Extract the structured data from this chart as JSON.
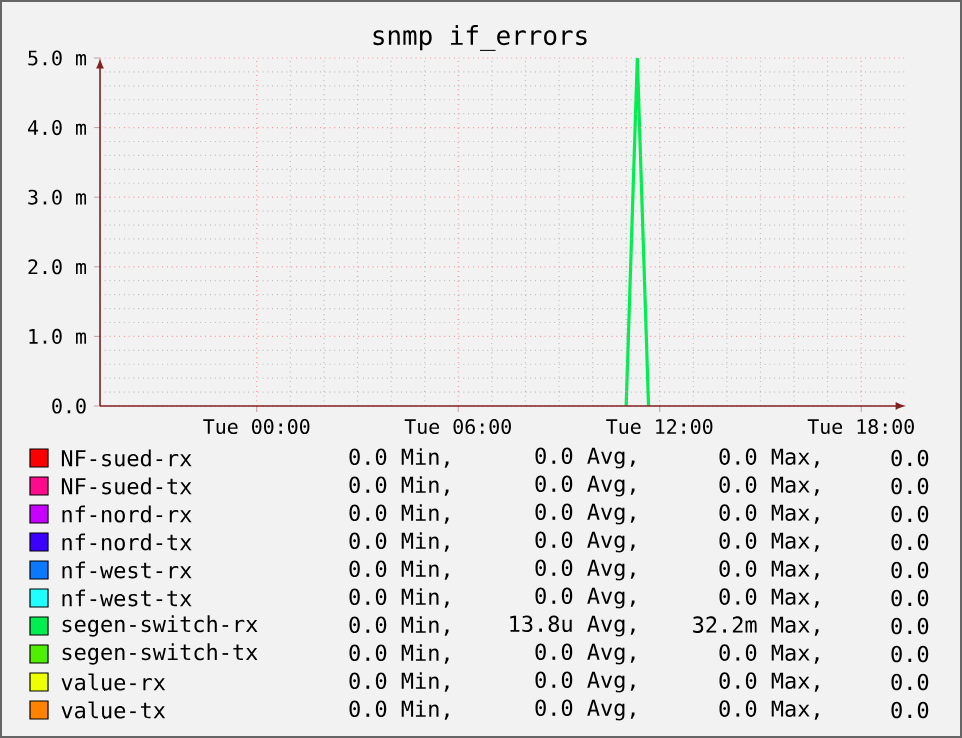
{
  "chart_data": {
    "type": "line",
    "title": "snmp if_errors",
    "categories": [
      null,
      null,
      null,
      null,
      null,
      null,
      null,
      null,
      null,
      null,
      null,
      null,
      null,
      null,
      "Tue 00:00",
      null,
      null,
      null,
      null,
      null,
      null,
      null,
      null,
      null,
      null,
      null,
      null,
      null,
      null,
      null,
      null,
      null,
      "Tue 06:00",
      null,
      null,
      null,
      null,
      null,
      null,
      null,
      null,
      null,
      null,
      null,
      null,
      null,
      null,
      null,
      null,
      null,
      "Tue 12:00",
      null,
      null,
      null,
      null,
      null,
      null,
      null,
      null,
      null,
      null,
      null,
      null,
      null,
      null,
      null,
      null,
      null,
      "Tue 18:00",
      null,
      null,
      null,
      null
    ],
    "ylim": [
      0,
      5
    ],
    "yticks": [
      {
        "value": 0,
        "label": "0.0"
      },
      {
        "value": 1,
        "label": "1.0 m"
      },
      {
        "value": 2,
        "label": "2.0 m"
      },
      {
        "value": 3,
        "label": "3.0 m"
      },
      {
        "value": 4,
        "label": "4.0 m"
      },
      {
        "value": 5,
        "label": "5.0 m"
      }
    ],
    "grid": true,
    "legend": "bottom",
    "series": [
      {
        "name": "NF-sued-rx",
        "color": "#ff0000",
        "values": [
          null,
          null,
          null,
          null,
          null,
          null,
          null,
          null,
          null,
          null,
          null,
          null,
          null,
          null,
          null,
          null,
          null,
          null,
          null,
          null,
          null,
          null,
          null,
          null,
          null,
          null,
          null,
          null,
          null,
          null,
          null,
          null,
          null,
          null,
          null,
          null,
          null,
          null,
          null,
          null,
          null,
          null,
          null,
          null,
          null,
          null,
          null,
          null,
          null,
          null,
          null,
          null,
          null,
          null,
          null,
          null,
          null,
          null,
          null,
          null,
          null,
          null,
          null,
          null,
          null,
          null,
          null,
          null,
          null,
          null,
          null,
          null,
          null
        ]
      },
      {
        "name": "NF-sued-tx",
        "color": "#ff0a8c",
        "values": [
          null,
          null,
          null,
          null,
          null,
          null,
          null,
          null,
          null,
          null,
          null,
          null,
          null,
          null,
          null,
          null,
          null,
          null,
          null,
          null,
          null,
          null,
          null,
          null,
          null,
          null,
          null,
          null,
          null,
          null,
          null,
          null,
          null,
          null,
          null,
          null,
          null,
          null,
          null,
          null,
          null,
          null,
          null,
          null,
          null,
          null,
          null,
          null,
          null,
          null,
          null,
          null,
          null,
          null,
          null,
          null,
          null,
          null,
          null,
          null,
          null,
          null,
          null,
          null,
          null,
          null,
          null,
          null,
          null,
          null,
          null,
          null,
          null
        ]
      },
      {
        "name": "nf-nord-rx",
        "color": "#c800ff",
        "values": [
          null,
          null,
          null,
          null,
          null,
          null,
          null,
          null,
          null,
          null,
          null,
          null,
          null,
          null,
          null,
          null,
          null,
          null,
          null,
          null,
          null,
          null,
          null,
          null,
          null,
          null,
          null,
          null,
          null,
          null,
          null,
          null,
          null,
          null,
          null,
          null,
          null,
          null,
          null,
          null,
          null,
          null,
          null,
          null,
          null,
          null,
          null,
          null,
          null,
          null,
          null,
          null,
          null,
          null,
          null,
          null,
          null,
          null,
          null,
          null,
          null,
          null,
          null,
          null,
          null,
          null,
          null,
          null,
          null,
          null,
          null,
          null,
          null
        ]
      },
      {
        "name": "nf-nord-tx",
        "color": "#3c00ff",
        "values": [
          null,
          null,
          null,
          null,
          null,
          null,
          null,
          null,
          null,
          null,
          null,
          null,
          null,
          null,
          null,
          null,
          null,
          null,
          null,
          null,
          null,
          null,
          null,
          null,
          null,
          null,
          null,
          null,
          null,
          null,
          null,
          null,
          null,
          null,
          null,
          null,
          null,
          null,
          null,
          null,
          null,
          null,
          null,
          null,
          null,
          null,
          null,
          null,
          null,
          null,
          null,
          null,
          null,
          null,
          null,
          null,
          null,
          null,
          null,
          null,
          null,
          null,
          null,
          null,
          null,
          null,
          null,
          null,
          null,
          null,
          null,
          null,
          null
        ]
      },
      {
        "name": "nf-west-rx",
        "color": "#0a78ff",
        "values": [
          null,
          null,
          null,
          null,
          null,
          null,
          null,
          null,
          null,
          null,
          null,
          null,
          null,
          null,
          null,
          null,
          null,
          null,
          null,
          null,
          null,
          null,
          null,
          null,
          null,
          null,
          null,
          null,
          null,
          null,
          null,
          null,
          null,
          null,
          null,
          null,
          null,
          null,
          null,
          null,
          null,
          null,
          null,
          null,
          null,
          null,
          null,
          null,
          null,
          null,
          null,
          null,
          null,
          null,
          null,
          null,
          null,
          null,
          null,
          null,
          null,
          null,
          null,
          null,
          null,
          null,
          null,
          null,
          null,
          null,
          null,
          null,
          null
        ]
      },
      {
        "name": "nf-west-tx",
        "color": "#1effff",
        "values": [
          null,
          null,
          null,
          null,
          null,
          null,
          null,
          null,
          null,
          null,
          null,
          null,
          null,
          null,
          null,
          null,
          null,
          null,
          null,
          null,
          null,
          null,
          null,
          null,
          null,
          null,
          null,
          null,
          null,
          null,
          null,
          null,
          null,
          null,
          null,
          null,
          null,
          null,
          null,
          null,
          null,
          null,
          null,
          null,
          null,
          null,
          null,
          null,
          null,
          null,
          null,
          null,
          null,
          null,
          null,
          null,
          null,
          null,
          null,
          null,
          null,
          null,
          null,
          null,
          null,
          null,
          null,
          null,
          null,
          null,
          null,
          null,
          null
        ]
      },
      {
        "name": "segen-switch-rx",
        "color": "#00ee50",
        "values": [
          null,
          null,
          null,
          null,
          null,
          null,
          null,
          null,
          null,
          null,
          null,
          null,
          null,
          null,
          null,
          null,
          null,
          null,
          null,
          null,
          null,
          null,
          null,
          null,
          null,
          null,
          null,
          null,
          null,
          null,
          null,
          null,
          null,
          null,
          null,
          null,
          null,
          null,
          null,
          null,
          null,
          null,
          null,
          null,
          null,
          null,
          null,
          0,
          5,
          0,
          null,
          null,
          null,
          null,
          null,
          null,
          null,
          null,
          null,
          null,
          null,
          null,
          null,
          null,
          null,
          null,
          null,
          null,
          null,
          null,
          null,
          null,
          null
        ]
      },
      {
        "name": "segen-switch-tx",
        "color": "#50ee00",
        "values": [
          null,
          null,
          null,
          null,
          null,
          null,
          null,
          null,
          null,
          null,
          null,
          null,
          null,
          null,
          null,
          null,
          null,
          null,
          null,
          null,
          null,
          null,
          null,
          null,
          null,
          null,
          null,
          null,
          null,
          null,
          null,
          null,
          null,
          null,
          null,
          null,
          null,
          null,
          null,
          null,
          null,
          null,
          null,
          null,
          null,
          null,
          null,
          null,
          null,
          null,
          null,
          null,
          null,
          null,
          null,
          null,
          null,
          null,
          null,
          null,
          null,
          null,
          null,
          null,
          null,
          null,
          null,
          null,
          null,
          null,
          null,
          null,
          null
        ]
      },
      {
        "name": "value-rx",
        "color": "#eeff00",
        "values": [
          null,
          null,
          null,
          null,
          null,
          null,
          null,
          null,
          null,
          null,
          null,
          null,
          null,
          null,
          null,
          null,
          null,
          null,
          null,
          null,
          null,
          null,
          null,
          null,
          null,
          null,
          null,
          null,
          null,
          null,
          null,
          null,
          null,
          null,
          null,
          null,
          null,
          null,
          null,
          null,
          null,
          null,
          null,
          null,
          null,
          null,
          null,
          null,
          null,
          null,
          null,
          null,
          null,
          null,
          null,
          null,
          null,
          null,
          null,
          null,
          null,
          null,
          null,
          null,
          null,
          null,
          null,
          null,
          null,
          null,
          null,
          null,
          null
        ]
      },
      {
        "name": "value-tx",
        "color": "#ff8200",
        "values": [
          null,
          null,
          null,
          null,
          null,
          null,
          null,
          null,
          null,
          null,
          null,
          null,
          null,
          null,
          null,
          null,
          null,
          null,
          null,
          null,
          null,
          null,
          null,
          null,
          null,
          null,
          null,
          null,
          null,
          null,
          null,
          null,
          null,
          null,
          null,
          null,
          null,
          null,
          null,
          null,
          null,
          null,
          null,
          null,
          null,
          null,
          null,
          null,
          null,
          null,
          null,
          null,
          null,
          null,
          null,
          null,
          null,
          null,
          null,
          null,
          null,
          null,
          null,
          null,
          null,
          null,
          null,
          null,
          null,
          null,
          null,
          null,
          null
        ]
      }
    ],
    "annotations": [
      "0.0 Min,",
      "0.0 Avg,",
      "0.0 Max,",
      "0.0",
      "0.0 Min,",
      "0.0 Avg,",
      "0.0 Max,",
      "0.0",
      "0.0 Min,",
      "0.0 Avg,",
      "0.0 Max,",
      "0.0",
      "0.0 Min,",
      "0.0 Avg,",
      "0.0 Max,",
      "0.0",
      "0.0 Min,",
      "0.0 Avg,",
      "0.0 Max,",
      "0.0",
      "0.0 Min,",
      "0.0 Avg,",
      "0.0 Max,",
      "0.0",
      "0.0 Min,",
      "13.8u Avg,",
      "32.2m Max,",
      "0.0",
      "0.0 Min,",
      "0.0 Avg,",
      "0.0 Max,",
      "0.0",
      "0.0 Min,",
      "0.0 Avg,",
      "0.0 Max,",
      "0.0",
      "0.0 Min,",
      "0.0 Avg,",
      "0.0 Max,",
      "0.0"
    ]
  }
}
